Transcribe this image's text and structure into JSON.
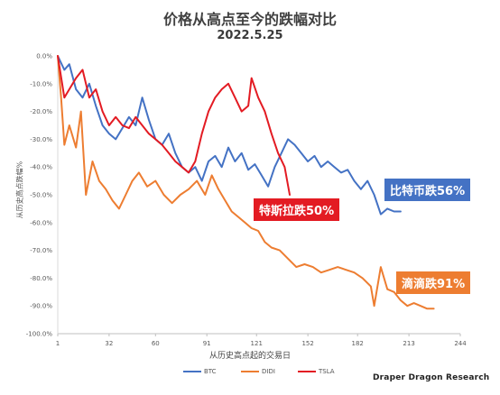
{
  "title": "价格从高点至今的跌幅对比",
  "subtitle": "2022.5.25",
  "annotations": {
    "btc": "比特币跌56%",
    "tsla": "特斯拉跌50%",
    "didi": "滴滴跌91%"
  },
  "brand": "Draper Dragon Research",
  "legend": [
    {
      "name": "BTC",
      "color": "#4472c4"
    },
    {
      "name": "DIDI",
      "color": "#ed7d31"
    },
    {
      "name": "TSLA",
      "color": "#e31b23"
    }
  ],
  "chart_data": {
    "type": "line",
    "title": "价格从高点至今的跌幅对比",
    "subtitle": "2022.5.25",
    "xlabel": "从历史高点起的交易日",
    "ylabel": "从历史高点跌幅%",
    "xlim": [
      1,
      244
    ],
    "ylim": [
      -100,
      0
    ],
    "x_ticks": [
      1,
      32,
      60,
      91,
      121,
      152,
      182,
      213,
      244
    ],
    "y_ticks": [
      "0.0%",
      "-10.0%",
      "-20.0%",
      "-30.0%",
      "-40.0%",
      "-50.0%",
      "-60.0%",
      "-70.0%",
      "-80.0%",
      "-90.0%",
      "-100.0%"
    ],
    "grid": false,
    "legend_position": "bottom",
    "series": [
      {
        "name": "BTC",
        "color": "#4472c4",
        "x": [
          1,
          5,
          8,
          12,
          16,
          20,
          24,
          28,
          32,
          36,
          40,
          44,
          48,
          52,
          56,
          60,
          64,
          68,
          72,
          76,
          80,
          84,
          88,
          92,
          96,
          100,
          104,
          108,
          112,
          116,
          120,
          124,
          128,
          132,
          136,
          140,
          144,
          148,
          152,
          156,
          160,
          164,
          168,
          172,
          176,
          180,
          184,
          188,
          192,
          196,
          200,
          204,
          208
        ],
        "values": [
          0,
          -5,
          -3,
          -12,
          -15,
          -10,
          -18,
          -25,
          -28,
          -30,
          -26,
          -22,
          -25,
          -15,
          -23,
          -30,
          -32,
          -28,
          -35,
          -40,
          -42,
          -40,
          -45,
          -38,
          -36,
          -40,
          -33,
          -38,
          -35,
          -41,
          -39,
          -43,
          -47,
          -40,
          -35,
          -30,
          -32,
          -35,
          -38,
          -36,
          -40,
          -38,
          -40,
          -42,
          -41,
          -45,
          -48,
          -45,
          -50,
          -57,
          -55,
          -56,
          -56
        ]
      },
      {
        "name": "DIDI",
        "color": "#ed7d31",
        "x": [
          1,
          3,
          5,
          8,
          12,
          15,
          18,
          22,
          26,
          30,
          34,
          38,
          42,
          46,
          50,
          55,
          60,
          65,
          70,
          75,
          80,
          85,
          90,
          94,
          98,
          102,
          106,
          110,
          114,
          118,
          122,
          126,
          130,
          135,
          140,
          145,
          150,
          155,
          160,
          165,
          170,
          175,
          180,
          185,
          190,
          192,
          196,
          200,
          204,
          208,
          212,
          216,
          220,
          224,
          228
        ],
        "values": [
          0,
          -15,
          -32,
          -25,
          -33,
          -20,
          -50,
          -38,
          -45,
          -48,
          -52,
          -55,
          -50,
          -45,
          -42,
          -47,
          -45,
          -50,
          -53,
          -50,
          -48,
          -45,
          -50,
          -43,
          -48,
          -52,
          -56,
          -58,
          -60,
          -62,
          -63,
          -67,
          -69,
          -70,
          -73,
          -76,
          -75,
          -76,
          -78,
          -77,
          -76,
          -77,
          -78,
          -80,
          -83,
          -90,
          -76,
          -84,
          -85,
          -88,
          -90,
          -89,
          -90,
          -91,
          -91
        ]
      },
      {
        "name": "TSLA",
        "color": "#e31b23",
        "x": [
          1,
          5,
          8,
          12,
          16,
          20,
          24,
          28,
          32,
          36,
          40,
          44,
          48,
          52,
          56,
          60,
          64,
          68,
          72,
          76,
          80,
          84,
          88,
          92,
          96,
          100,
          104,
          108,
          112,
          116,
          118,
          122,
          126,
          130,
          134,
          138,
          141
        ],
        "values": [
          0,
          -15,
          -12,
          -8,
          -5,
          -15,
          -12,
          -20,
          -25,
          -22,
          -25,
          -26,
          -22,
          -25,
          -28,
          -30,
          -32,
          -35,
          -38,
          -40,
          -42,
          -38,
          -28,
          -20,
          -15,
          -12,
          -10,
          -15,
          -20,
          -18,
          -8,
          -15,
          -20,
          -28,
          -35,
          -40,
          -50
        ]
      }
    ]
  }
}
